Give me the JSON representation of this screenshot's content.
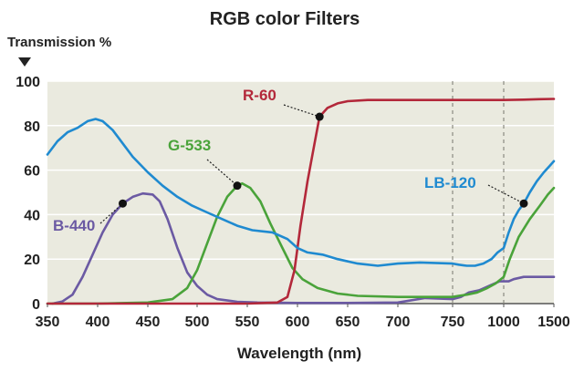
{
  "chart_data": {
    "type": "line",
    "title": "RGB color Filters",
    "ylabel": "Transmission %",
    "xlabel": "Wavelength (nm)",
    "ylim": [
      0,
      100
    ],
    "y_ticks": [
      "0",
      "20",
      "40",
      "60",
      "80",
      "100"
    ],
    "x_tick_labels": [
      "350",
      "400",
      "450",
      "500",
      "550",
      "600",
      "650",
      "700",
      "750",
      "1000",
      "1500"
    ],
    "x_tick_nm": [
      350,
      400,
      450,
      500,
      550,
      600,
      650,
      700,
      750,
      1000,
      1500
    ],
    "dashed_verticals_nm": [
      750,
      1000
    ],
    "grid": true,
    "background_color": "#eaeadf",
    "series": [
      {
        "name": "B-440",
        "color": "#6b5aa3",
        "points": [
          [
            355,
            0
          ],
          [
            365,
            1
          ],
          [
            375,
            4
          ],
          [
            385,
            12
          ],
          [
            395,
            22
          ],
          [
            405,
            32
          ],
          [
            415,
            40
          ],
          [
            425,
            45
          ],
          [
            435,
            48
          ],
          [
            445,
            49.5
          ],
          [
            455,
            49
          ],
          [
            462,
            46
          ],
          [
            470,
            38
          ],
          [
            480,
            25
          ],
          [
            490,
            14
          ],
          [
            500,
            8
          ],
          [
            510,
            4
          ],
          [
            520,
            2
          ],
          [
            540,
            0.8
          ],
          [
            560,
            0.5
          ],
          [
            600,
            0.3
          ],
          [
            650,
            0.3
          ],
          [
            700,
            0.5
          ],
          [
            725,
            2.5
          ],
          [
            750,
            2
          ],
          [
            790,
            3
          ],
          [
            830,
            5
          ],
          [
            880,
            6
          ],
          [
            930,
            8
          ],
          [
            980,
            10
          ],
          [
            1000,
            10
          ],
          [
            1050,
            10
          ],
          [
            1100,
            11
          ],
          [
            1200,
            12
          ],
          [
            1300,
            12
          ],
          [
            1400,
            12
          ],
          [
            1500,
            12
          ]
        ],
        "marker_nm": 425
      },
      {
        "name": "G-533",
        "color": "#4aa33a",
        "points": [
          [
            350,
            0
          ],
          [
            400,
            0
          ],
          [
            450,
            0.5
          ],
          [
            475,
            2
          ],
          [
            490,
            7
          ],
          [
            500,
            15
          ],
          [
            510,
            27
          ],
          [
            520,
            39
          ],
          [
            530,
            48
          ],
          [
            540,
            53
          ],
          [
            545,
            54
          ],
          [
            553,
            52
          ],
          [
            563,
            46
          ],
          [
            573,
            36
          ],
          [
            585,
            25
          ],
          [
            595,
            16
          ],
          [
            605,
            11
          ],
          [
            620,
            7
          ],
          [
            640,
            4.5
          ],
          [
            660,
            3.5
          ],
          [
            700,
            3
          ],
          [
            750,
            3
          ],
          [
            780,
            3.5
          ],
          [
            820,
            4
          ],
          [
            870,
            5
          ],
          [
            920,
            7
          ],
          [
            960,
            9
          ],
          [
            1000,
            12
          ],
          [
            1060,
            20
          ],
          [
            1150,
            30
          ],
          [
            1260,
            38
          ],
          [
            1360,
            44
          ],
          [
            1440,
            49
          ],
          [
            1500,
            52
          ]
        ],
        "marker_nm": 540
      },
      {
        "name": "R-60",
        "color": "#b3283a",
        "points": [
          [
            350,
            0
          ],
          [
            550,
            0
          ],
          [
            580,
            0.5
          ],
          [
            590,
            3
          ],
          [
            597,
            15
          ],
          [
            603,
            35
          ],
          [
            610,
            55
          ],
          [
            617,
            72
          ],
          [
            622,
            84
          ],
          [
            630,
            88
          ],
          [
            640,
            90
          ],
          [
            650,
            91
          ],
          [
            670,
            91.5
          ],
          [
            700,
            91.5
          ],
          [
            750,
            91.5
          ],
          [
            850,
            91.5
          ],
          [
            1000,
            91.5
          ],
          [
            1200,
            91.7
          ],
          [
            1350,
            91.9
          ],
          [
            1500,
            92
          ]
        ],
        "marker_nm": 622
      },
      {
        "name": "LB-120",
        "color": "#1f8ad0",
        "points": [
          [
            350,
            67
          ],
          [
            360,
            73
          ],
          [
            370,
            77
          ],
          [
            380,
            79
          ],
          [
            390,
            82
          ],
          [
            398,
            83
          ],
          [
            405,
            82
          ],
          [
            415,
            78
          ],
          [
            425,
            72
          ],
          [
            435,
            66
          ],
          [
            450,
            59
          ],
          [
            465,
            53
          ],
          [
            480,
            48
          ],
          [
            495,
            44
          ],
          [
            510,
            41
          ],
          [
            525,
            38
          ],
          [
            540,
            35
          ],
          [
            555,
            33
          ],
          [
            575,
            32
          ],
          [
            590,
            29
          ],
          [
            600,
            25
          ],
          [
            610,
            23
          ],
          [
            625,
            22
          ],
          [
            640,
            20
          ],
          [
            660,
            18
          ],
          [
            680,
            17
          ],
          [
            700,
            18
          ],
          [
            720,
            18.5
          ],
          [
            750,
            18
          ],
          [
            780,
            17.5
          ],
          [
            820,
            17
          ],
          [
            860,
            17
          ],
          [
            900,
            18
          ],
          [
            940,
            20
          ],
          [
            970,
            23
          ],
          [
            1000,
            25
          ],
          [
            1050,
            32
          ],
          [
            1100,
            38
          ],
          [
            1150,
            42
          ],
          [
            1200,
            45
          ],
          [
            1260,
            50
          ],
          [
            1330,
            55
          ],
          [
            1400,
            59
          ],
          [
            1460,
            62
          ],
          [
            1500,
            64
          ]
        ],
        "marker_nm": 1200
      }
    ],
    "annotations": [
      {
        "label": "B-440",
        "series": "B-440",
        "placement": "upper-left"
      },
      {
        "label": "G-533",
        "series": "G-533",
        "placement": "upper-left"
      },
      {
        "label": "R-60",
        "series": "R-60",
        "placement": "upper-left"
      },
      {
        "label": "LB-120",
        "series": "LB-120",
        "placement": "upper-left"
      }
    ]
  }
}
